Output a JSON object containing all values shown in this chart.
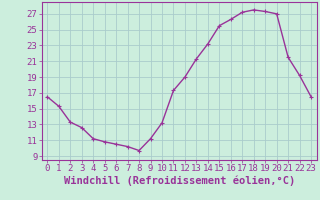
{
  "x": [
    0,
    1,
    2,
    3,
    4,
    5,
    6,
    7,
    8,
    9,
    10,
    11,
    12,
    13,
    14,
    15,
    16,
    17,
    18,
    19,
    20,
    21,
    22,
    23
  ],
  "y": [
    16.5,
    15.3,
    13.3,
    12.6,
    11.2,
    10.8,
    10.5,
    10.2,
    9.7,
    11.2,
    13.2,
    17.3,
    19.0,
    21.3,
    23.2,
    25.5,
    26.3,
    27.2,
    27.5,
    27.3,
    27.0,
    21.5,
    19.2,
    16.5
  ],
  "line_color": "#993399",
  "marker": "P",
  "marker_size": 3,
  "bg_color": "#cceedd",
  "grid_color": "#aacccc",
  "xlabel": "Windchill (Refroidissement éolien,°C)",
  "xlim": [
    -0.5,
    23.5
  ],
  "ylim": [
    8.5,
    28.5
  ],
  "yticks": [
    9,
    11,
    13,
    15,
    17,
    19,
    21,
    23,
    25,
    27
  ],
  "xticks": [
    0,
    1,
    2,
    3,
    4,
    5,
    6,
    7,
    8,
    9,
    10,
    11,
    12,
    13,
    14,
    15,
    16,
    17,
    18,
    19,
    20,
    21,
    22,
    23
  ],
  "xlabel_fontsize": 7.5,
  "tick_fontsize": 6.5,
  "line_width": 1.0
}
